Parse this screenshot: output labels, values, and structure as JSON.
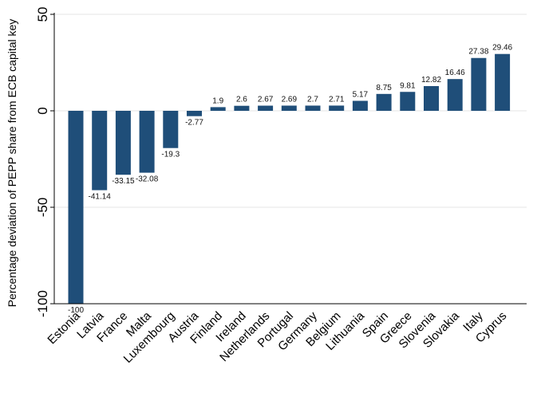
{
  "chart_data": {
    "type": "bar",
    "ylabel": "Percentage deviation of PEPP share from ECB capital key",
    "ylim": [
      -100,
      50
    ],
    "yticks": [
      -100,
      -50,
      0,
      50
    ],
    "ytick_labels": [
      "-100",
      "-50",
      "0",
      "50"
    ],
    "grid": true,
    "bar_color": "#1F4E79",
    "categories": [
      "Estonia",
      "Latvia",
      "France",
      "Malta",
      "Luxembourg",
      "Austria",
      "Finland",
      "Ireland",
      "Netherlands",
      "Portugal",
      "Germany",
      "Belgium",
      "Lithuania",
      "Spain",
      "Greece",
      "Slovenia",
      "Slovakia",
      "Italy",
      "Cyprus"
    ],
    "values": [
      -100,
      -41.14,
      -33.15,
      -32.08,
      -19.3,
      -2.77,
      1.9,
      2.6,
      2.67,
      2.69,
      2.7,
      2.71,
      5.17,
      8.75,
      9.81,
      12.82,
      16.46,
      27.38,
      29.46
    ],
    "value_labels": [
      "-100",
      "-41.14",
      "-33.15",
      "-32.08",
      "-19.3",
      "-2.77",
      "1.9",
      "2.6",
      "2.67",
      "2.69",
      "2.7",
      "2.71",
      "5.17",
      "8.75",
      "9.81",
      "12.82",
      "16.46",
      "27.38",
      "29.46"
    ]
  }
}
